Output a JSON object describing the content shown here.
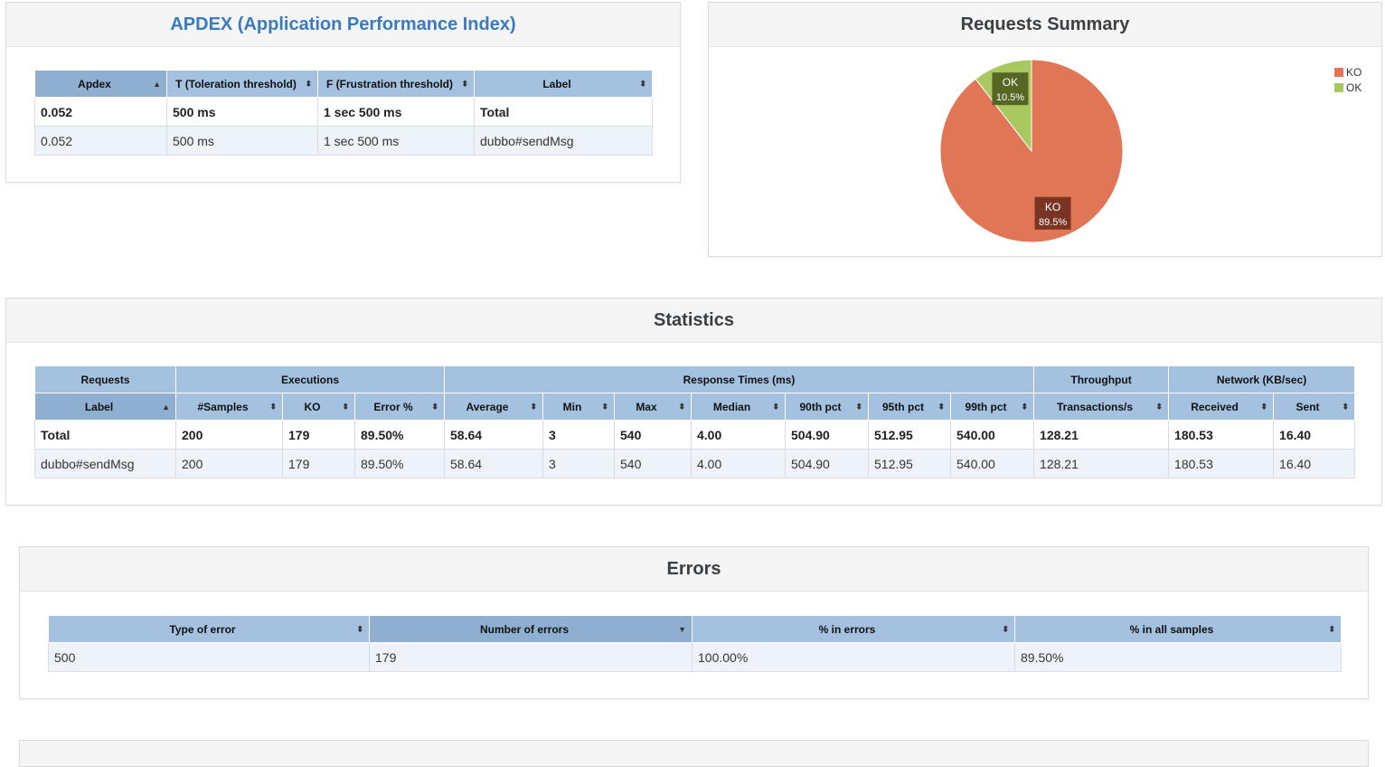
{
  "apdex": {
    "title": "APDEX (Application Performance Index)",
    "headers": [
      "Apdex",
      "T (Toleration threshold)",
      "F (Frustration threshold)",
      "Label"
    ],
    "rows": [
      [
        "0.052",
        "500 ms",
        "1 sec 500 ms",
        "Total"
      ],
      [
        "0.052",
        "500 ms",
        "1 sec 500 ms",
        "dubbo#sendMsg"
      ]
    ]
  },
  "summary": {
    "title": "Requests Summary",
    "legend": [
      {
        "label": "KO",
        "color": "#e07655"
      },
      {
        "label": "OK",
        "color": "#a9c960"
      }
    ]
  },
  "chart_data": {
    "type": "pie",
    "title": "Requests Summary",
    "slices": [
      {
        "name": "KO",
        "value": 89.5,
        "label": "89.5%",
        "color": "#e07655"
      },
      {
        "name": "OK",
        "value": 10.5,
        "label": "10.5%",
        "color": "#a9c960"
      }
    ],
    "legend_position": "top-right"
  },
  "statistics": {
    "title": "Statistics",
    "groups": [
      "Requests",
      "Executions",
      "Response Times (ms)",
      "Throughput",
      "Network (KB/sec)"
    ],
    "headers": [
      "Label",
      "#Samples",
      "KO",
      "Error %",
      "Average",
      "Min",
      "Max",
      "Median",
      "90th pct",
      "95th pct",
      "99th pct",
      "Transactions/s",
      "Received",
      "Sent"
    ],
    "rows": [
      [
        "Total",
        "200",
        "179",
        "89.50%",
        "58.64",
        "3",
        "540",
        "4.00",
        "504.90",
        "512.95",
        "540.00",
        "128.21",
        "180.53",
        "16.40"
      ],
      [
        "dubbo#sendMsg",
        "200",
        "179",
        "89.50%",
        "58.64",
        "3",
        "540",
        "4.00",
        "504.90",
        "512.95",
        "540.00",
        "128.21",
        "180.53",
        "16.40"
      ]
    ]
  },
  "errors": {
    "title": "Errors",
    "headers": [
      "Type of error",
      "Number of errors",
      "% in errors",
      "% in all samples"
    ],
    "rows": [
      [
        "500",
        "179",
        "100.00%",
        "89.50%"
      ]
    ]
  },
  "icons": {
    "sort_both": "sort-both-icon",
    "sort_up": "sort-up-icon",
    "sort_down": "sort-down-icon"
  }
}
